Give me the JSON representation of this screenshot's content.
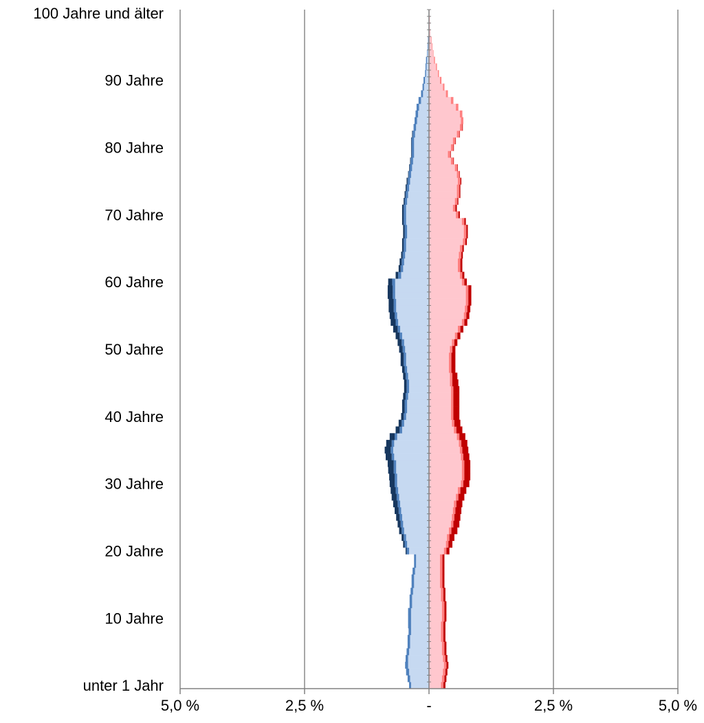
{
  "chart_data": {
    "type": "bar",
    "orientation": "horizontal",
    "layout": "population-pyramid",
    "title": "",
    "xlabel": "",
    "ylabel": "",
    "xlim": [
      -5.0,
      5.0
    ],
    "x_ticks": [
      {
        "value": -5.0,
        "label": "5,0 %"
      },
      {
        "value": -2.5,
        "label": "2,5 %"
      },
      {
        "value": 0,
        "label": "-"
      },
      {
        "value": 2.5,
        "label": "2,5 %"
      },
      {
        "value": 5.0,
        "label": "5,0 %"
      }
    ],
    "y_ticks": [
      {
        "age": 0,
        "label": "unter 1 Jahr"
      },
      {
        "age": 10,
        "label": "10 Jahre"
      },
      {
        "age": 20,
        "label": "20 Jahre"
      },
      {
        "age": 30,
        "label": "30 Jahre"
      },
      {
        "age": 40,
        "label": "40 Jahre"
      },
      {
        "age": 50,
        "label": "50 Jahre"
      },
      {
        "age": 60,
        "label": "60 Jahre"
      },
      {
        "age": 70,
        "label": "70 Jahre"
      },
      {
        "age": 80,
        "label": "80 Jahre"
      },
      {
        "age": 90,
        "label": "90 Jahre"
      },
      {
        "age": 100,
        "label": "100 Jahre und älter"
      }
    ],
    "grid": true,
    "colors": {
      "male_base": "#c6d9f1",
      "male_mid": "#4f81bd",
      "male_dark": "#17375e",
      "female_base": "#ffc7ce",
      "female_mid": "#ff8080",
      "female_dark": "#c00000",
      "grid": "#a6a6a6",
      "axis": "#808080"
    },
    "ages": [
      0,
      1,
      2,
      3,
      4,
      5,
      6,
      7,
      8,
      9,
      10,
      11,
      12,
      13,
      14,
      15,
      16,
      17,
      18,
      19,
      20,
      21,
      22,
      23,
      24,
      25,
      26,
      27,
      28,
      29,
      30,
      31,
      32,
      33,
      34,
      35,
      36,
      37,
      38,
      39,
      40,
      41,
      42,
      43,
      44,
      45,
      46,
      47,
      48,
      49,
      50,
      51,
      52,
      53,
      54,
      55,
      56,
      57,
      58,
      59,
      60,
      61,
      62,
      63,
      64,
      65,
      66,
      67,
      68,
      69,
      70,
      71,
      72,
      73,
      74,
      75,
      76,
      77,
      78,
      79,
      80,
      81,
      82,
      83,
      84,
      85,
      86,
      87,
      88,
      89,
      90,
      91,
      92,
      93,
      94,
      95,
      96,
      97,
      98,
      99,
      100
    ],
    "series": [
      {
        "name": "",
        "side": "left",
        "tone": "base",
        "values": [
          0.36,
          0.38,
          0.4,
          0.42,
          0.42,
          0.4,
          0.38,
          0.38,
          0.36,
          0.36,
          0.36,
          0.36,
          0.34,
          0.34,
          0.32,
          0.3,
          0.3,
          0.28,
          0.26,
          0.26,
          0.4,
          0.44,
          0.46,
          0.5,
          0.52,
          0.54,
          0.56,
          0.58,
          0.6,
          0.62,
          0.64,
          0.64,
          0.66,
          0.66,
          0.7,
          0.72,
          0.7,
          0.64,
          0.54,
          0.5,
          0.46,
          0.44,
          0.44,
          0.42,
          0.4,
          0.4,
          0.42,
          0.44,
          0.46,
          0.46,
          0.48,
          0.5,
          0.54,
          0.58,
          0.62,
          0.64,
          0.66,
          0.66,
          0.68,
          0.68,
          0.68,
          0.56,
          0.52,
          0.5,
          0.48,
          0.46,
          0.46,
          0.44,
          0.44,
          0.46,
          0.46,
          0.46,
          0.44,
          0.42,
          0.4,
          0.38,
          0.36,
          0.34,
          0.32,
          0.3,
          0.3,
          0.3,
          0.28,
          0.26,
          0.24,
          0.22,
          0.2,
          0.16,
          0.12,
          0.1,
          0.08,
          0.06,
          0.05,
          0.04,
          0.03,
          0.02,
          0.01,
          0.01,
          0.01,
          0.01,
          0.01
        ]
      },
      {
        "name": "",
        "side": "left",
        "tone": "mid",
        "values": [
          0.04,
          0.05,
          0.06,
          0.06,
          0.05,
          0.05,
          0.05,
          0.05,
          0.05,
          0.06,
          0.06,
          0.06,
          0.05,
          0.05,
          0.05,
          0.05,
          0.05,
          0.05,
          0.04,
          0.04,
          0.05,
          0.05,
          0.05,
          0.05,
          0.05,
          0.05,
          0.05,
          0.05,
          0.05,
          0.05,
          0.05,
          0.05,
          0.05,
          0.05,
          0.05,
          0.05,
          0.05,
          0.05,
          0.05,
          0.05,
          0.05,
          0.05,
          0.05,
          0.05,
          0.05,
          0.05,
          0.05,
          0.05,
          0.05,
          0.05,
          0.05,
          0.05,
          0.05,
          0.05,
          0.05,
          0.05,
          0.05,
          0.05,
          0.05,
          0.05,
          0.06,
          0.06,
          0.05,
          0.05,
          0.05,
          0.05,
          0.05,
          0.05,
          0.05,
          0.05,
          0.05,
          0.05,
          0.05,
          0.05,
          0.05,
          0.05,
          0.05,
          0.05,
          0.05,
          0.05,
          0.05,
          0.05,
          0.05,
          0.05,
          0.05,
          0.05,
          0.05,
          0.05,
          0.04,
          0.03,
          0.03,
          0.02,
          0.02,
          0.02,
          0.01,
          0.01,
          0.01,
          0.0,
          0.0,
          0.0,
          0.0
        ]
      },
      {
        "name": "",
        "side": "left",
        "tone": "dark",
        "values": [
          0.0,
          0.0,
          0.0,
          0.0,
          0.0,
          0.0,
          0.0,
          0.0,
          0.0,
          0.0,
          0.0,
          0.0,
          0.0,
          0.0,
          0.0,
          0.0,
          0.0,
          0.0,
          0.0,
          0.0,
          0.02,
          0.03,
          0.04,
          0.05,
          0.06,
          0.07,
          0.08,
          0.09,
          0.1,
          0.1,
          0.1,
          0.11,
          0.11,
          0.12,
          0.12,
          0.12,
          0.11,
          0.1,
          0.08,
          0.06,
          0.05,
          0.05,
          0.05,
          0.05,
          0.05,
          0.05,
          0.05,
          0.05,
          0.06,
          0.06,
          0.07,
          0.08,
          0.08,
          0.09,
          0.1,
          0.1,
          0.1,
          0.1,
          0.1,
          0.1,
          0.08,
          0.05,
          0.04,
          0.04,
          0.03,
          0.03,
          0.03,
          0.03,
          0.03,
          0.03,
          0.03,
          0.03,
          0.02,
          0.02,
          0.02,
          0.02,
          0.01,
          0.01,
          0.01,
          0.01,
          0.01,
          0.01,
          0.01,
          0.0,
          0.0,
          0.0,
          0.0,
          0.0,
          0.0,
          0.0,
          0.0,
          0.0,
          0.0,
          0.0,
          0.0,
          0.0,
          0.0,
          0.0,
          0.0,
          0.0,
          0.0
        ]
      },
      {
        "name": "",
        "side": "right",
        "tone": "base",
        "values": [
          0.24,
          0.26,
          0.28,
          0.3,
          0.28,
          0.26,
          0.26,
          0.24,
          0.24,
          0.24,
          0.26,
          0.26,
          0.26,
          0.24,
          0.24,
          0.22,
          0.22,
          0.22,
          0.22,
          0.22,
          0.3,
          0.34,
          0.36,
          0.4,
          0.44,
          0.46,
          0.48,
          0.5,
          0.54,
          0.58,
          0.64,
          0.66,
          0.66,
          0.66,
          0.64,
          0.62,
          0.6,
          0.56,
          0.5,
          0.46,
          0.44,
          0.44,
          0.44,
          0.44,
          0.44,
          0.42,
          0.42,
          0.4,
          0.4,
          0.4,
          0.42,
          0.46,
          0.52,
          0.58,
          0.66,
          0.7,
          0.72,
          0.74,
          0.74,
          0.74,
          0.66,
          0.62,
          0.58,
          0.58,
          0.6,
          0.62,
          0.68,
          0.7,
          0.7,
          0.66,
          0.54,
          0.48,
          0.52,
          0.56,
          0.56,
          0.58,
          0.56,
          0.52,
          0.44,
          0.38,
          0.44,
          0.48,
          0.56,
          0.62,
          0.64,
          0.62,
          0.54,
          0.44,
          0.34,
          0.28,
          0.22,
          0.18,
          0.14,
          0.1,
          0.08,
          0.06,
          0.04,
          0.03,
          0.02,
          0.02,
          0.01
        ]
      },
      {
        "name": "",
        "side": "right",
        "tone": "mid",
        "values": [
          0.05,
          0.05,
          0.05,
          0.05,
          0.05,
          0.05,
          0.05,
          0.05,
          0.05,
          0.05,
          0.05,
          0.05,
          0.05,
          0.05,
          0.05,
          0.05,
          0.05,
          0.05,
          0.05,
          0.05,
          0.05,
          0.05,
          0.05,
          0.05,
          0.05,
          0.05,
          0.05,
          0.05,
          0.05,
          0.05,
          0.05,
          0.05,
          0.05,
          0.05,
          0.05,
          0.05,
          0.05,
          0.05,
          0.05,
          0.05,
          0.05,
          0.05,
          0.05,
          0.05,
          0.05,
          0.05,
          0.05,
          0.05,
          0.05,
          0.05,
          0.05,
          0.05,
          0.05,
          0.05,
          0.05,
          0.05,
          0.05,
          0.05,
          0.05,
          0.05,
          0.05,
          0.05,
          0.05,
          0.05,
          0.05,
          0.05,
          0.05,
          0.05,
          0.05,
          0.05,
          0.05,
          0.05,
          0.05,
          0.05,
          0.05,
          0.05,
          0.05,
          0.05,
          0.05,
          0.05,
          0.05,
          0.05,
          0.05,
          0.05,
          0.05,
          0.05,
          0.05,
          0.05,
          0.04,
          0.03,
          0.03,
          0.02,
          0.02,
          0.02,
          0.01,
          0.01,
          0.01,
          0.0,
          0.0,
          0.0,
          0.0
        ]
      },
      {
        "name": "",
        "side": "right",
        "tone": "dark",
        "values": [
          0.04,
          0.04,
          0.04,
          0.04,
          0.04,
          0.04,
          0.04,
          0.04,
          0.04,
          0.04,
          0.04,
          0.04,
          0.04,
          0.04,
          0.04,
          0.04,
          0.04,
          0.04,
          0.04,
          0.04,
          0.06,
          0.08,
          0.1,
          0.12,
          0.12,
          0.12,
          0.12,
          0.12,
          0.12,
          0.12,
          0.12,
          0.12,
          0.12,
          0.12,
          0.12,
          0.12,
          0.12,
          0.12,
          0.12,
          0.12,
          0.12,
          0.12,
          0.12,
          0.12,
          0.12,
          0.12,
          0.1,
          0.08,
          0.08,
          0.08,
          0.06,
          0.06,
          0.06,
          0.06,
          0.06,
          0.06,
          0.06,
          0.06,
          0.06,
          0.06,
          0.05,
          0.04,
          0.04,
          0.04,
          0.03,
          0.03,
          0.03,
          0.03,
          0.03,
          0.03,
          0.03,
          0.03,
          0.02,
          0.02,
          0.02,
          0.02,
          0.01,
          0.01,
          0.01,
          0.01,
          0.01,
          0.01,
          0.01,
          0.01,
          0.0,
          0.0,
          0.0,
          0.0,
          0.0,
          0.0,
          0.0,
          0.0,
          0.0,
          0.0,
          0.0,
          0.0,
          0.0,
          0.0,
          0.0,
          0.0,
          0.0
        ]
      }
    ]
  }
}
